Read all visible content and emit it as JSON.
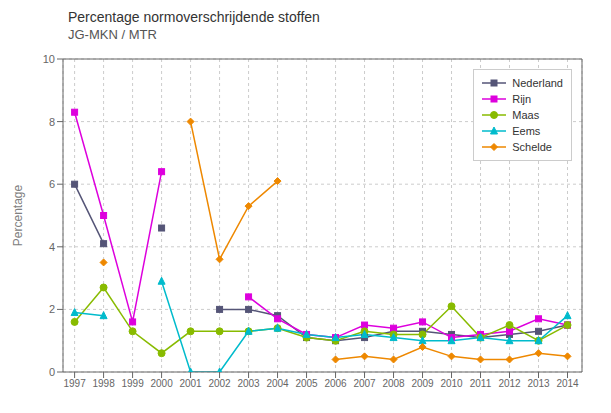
{
  "chart_data": {
    "type": "line",
    "title": "Percentage normoverschrijdende stoffen",
    "subtitle": "JG-MKN / MTR",
    "ylabel": "Percentage",
    "x": [
      1997,
      1998,
      1999,
      2000,
      2001,
      2002,
      2003,
      2004,
      2005,
      2006,
      2007,
      2008,
      2009,
      2010,
      2011,
      2012,
      2013,
      2014
    ],
    "series": [
      {
        "name": "Nederland",
        "color": "#555577",
        "marker": "square",
        "line_style": "solid",
        "values": [
          6.0,
          4.1,
          null,
          4.6,
          null,
          2.0,
          2.0,
          1.8,
          1.1,
          1.0,
          1.1,
          1.3,
          1.3,
          1.2,
          1.1,
          1.2,
          1.3,
          1.5
        ]
      },
      {
        "name": "Rijn",
        "color": "#dd00dd",
        "marker": "square",
        "line_style": "solid",
        "values": [
          8.3,
          5.0,
          1.6,
          6.4,
          null,
          null,
          2.4,
          1.7,
          1.2,
          1.1,
          1.5,
          1.4,
          1.6,
          1.1,
          1.2,
          1.3,
          1.7,
          1.5
        ]
      },
      {
        "name": "Maas",
        "color": "#88bb00",
        "marker": "circle",
        "line_style": "solid",
        "values": [
          1.6,
          2.7,
          1.3,
          0.6,
          1.3,
          1.3,
          1.3,
          1.4,
          1.1,
          1.0,
          1.3,
          1.2,
          1.2,
          2.1,
          1.1,
          1.5,
          1.0,
          1.5
        ]
      },
      {
        "name": "Eems",
        "color": "#00bbcc",
        "marker": "triangle",
        "line_style": "solid",
        "values": [
          1.9,
          1.8,
          null,
          2.9,
          0.0,
          0.0,
          1.3,
          1.4,
          1.2,
          1.1,
          1.2,
          1.1,
          1.0,
          1.0,
          1.1,
          1.0,
          1.0,
          1.8
        ]
      },
      {
        "name": "Schelde",
        "color": "#ee8800",
        "marker": "diamond",
        "line_style": "solid",
        "values": [
          null,
          3.5,
          null,
          null,
          8.0,
          3.6,
          5.3,
          6.1,
          null,
          0.4,
          0.5,
          0.4,
          0.8,
          0.5,
          0.4,
          0.4,
          0.6,
          0.5
        ]
      }
    ],
    "xlim": [
      1996.6,
      2014.5
    ],
    "xticks": [
      1997,
      1998,
      1999,
      2000,
      2001,
      2002,
      2003,
      2004,
      2005,
      2006,
      2007,
      2008,
      2009,
      2010,
      2011,
      2012,
      2013,
      2014
    ],
    "ylim": [
      0,
      10
    ],
    "yticks": [
      0,
      2,
      4,
      6,
      8,
      10
    ],
    "grid": true,
    "legend": "upper right"
  }
}
